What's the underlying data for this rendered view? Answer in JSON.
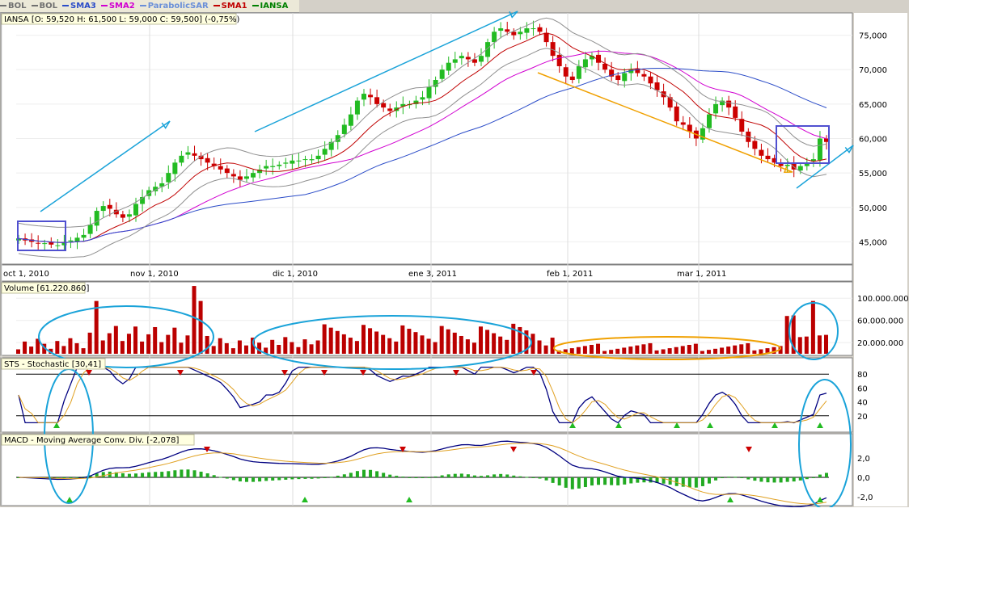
{
  "legend": [
    {
      "label": "BOL",
      "color": "#707070"
    },
    {
      "label": "BOL",
      "color": "#707070"
    },
    {
      "label": "SMA3",
      "color": "#2b4cc8"
    },
    {
      "label": "SMA2",
      "color": "#d100d1"
    },
    {
      "label": "ParabolicSAR",
      "color": "#6a8fd8"
    },
    {
      "label": "SMA1",
      "color": "#c00000"
    },
    {
      "label": "IANSA",
      "color": "#008000"
    }
  ],
  "colors": {
    "up": "#22bb22",
    "down": "#cc0000",
    "volume": "#bb0000",
    "stoch_k": "#000080",
    "stoch_d": "#e0a020",
    "macd": "#000080",
    "macd_signal": "#e0a020",
    "hist": "#22aa22",
    "annot_cyan": "#1aa3d9",
    "annot_orange": "#f0a000",
    "annot_box": "#5050d0",
    "signal_up": "#22bb22",
    "signal_down": "#cc0000"
  },
  "main_panel": {
    "label": "IANSA [O: 59,520  H: 61,500  L: 59,000  C: 59,500] (-0,75%)",
    "ticks": [
      "75,000",
      "70,000",
      "65,000",
      "60,000",
      "55,000",
      "50,000",
      "45,000"
    ]
  },
  "date_ticks": [
    "oct 1, 2010",
    "nov 1, 2010",
    "dic 1, 2010",
    "ene 3, 2011",
    "feb 1, 2011",
    "mar 1, 2011"
  ],
  "volume_panel": {
    "label": "Volume [61.220.860]",
    "ticks": [
      "100.000.000",
      "60.000.000",
      "20.000.000"
    ]
  },
  "stoch_panel": {
    "label": "STS - Stochastic [30,41]",
    "ticks": [
      "80",
      "60",
      "40",
      "20"
    ]
  },
  "macd_panel": {
    "label": "MACD - Moving Average Conv. Div. [-2,078]",
    "ticks": [
      "2,0",
      "0,0",
      "-2,0"
    ]
  },
  "chart_data": {
    "type": "candlestick",
    "title": "IANSA",
    "x_range": [
      "oct 1, 2010",
      "mar 2011"
    ],
    "y_range": [
      42000,
      78000
    ],
    "closes": [
      45500,
      45200,
      45000,
      44800,
      44800,
      44600,
      44500,
      44900,
      45200,
      45600,
      46000,
      47500,
      49500,
      50200,
      49800,
      49000,
      48500,
      49000,
      50500,
      51500,
      52500,
      53000,
      53500,
      55000,
      56500,
      57500,
      58000,
      57500,
      57000,
      56500,
      56000,
      55500,
      55000,
      54500,
      54000,
      54500,
      55000,
      55500,
      56000,
      56000,
      56200,
      56500,
      56800,
      56800,
      57000,
      57000,
      57500,
      58500,
      59500,
      60500,
      62000,
      63500,
      65500,
      66500,
      66000,
      65000,
      64500,
      64000,
      64500,
      65000,
      65000,
      65500,
      66000,
      67500,
      68500,
      70000,
      71000,
      71500,
      72000,
      71500,
      71000,
      72000,
      74000,
      75500,
      76000,
      75500,
      75000,
      75500,
      76000,
      76000,
      75500,
      74000,
      72000,
      70500,
      69000,
      68500,
      70500,
      71500,
      72000,
      71000,
      70000,
      69000,
      68500,
      69500,
      70000,
      69500,
      69000,
      68000,
      67000,
      66000,
      64500,
      62500,
      62000,
      61000,
      60000,
      61500,
      63500,
      65000,
      65500,
      64500,
      63000,
      61000,
      59500,
      58500,
      57500,
      57000,
      56500,
      56000,
      56200,
      55500,
      56000,
      56500,
      57000,
      60000,
      59500
    ]
  }
}
